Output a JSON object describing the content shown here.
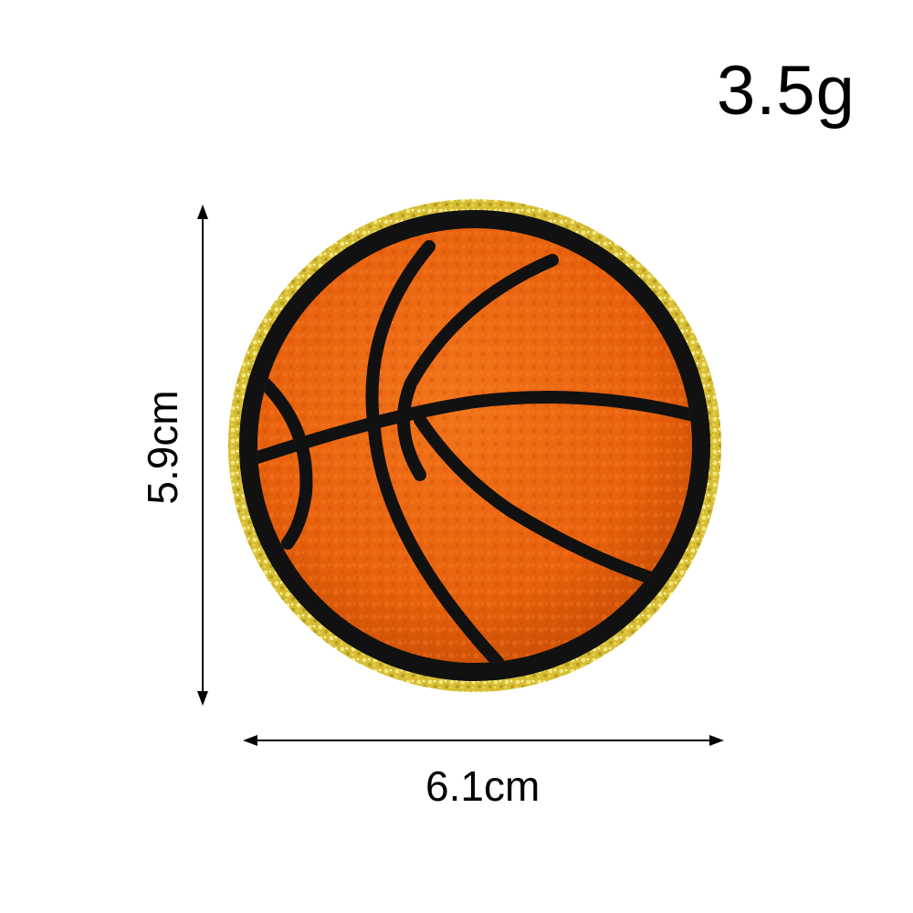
{
  "weight_label": "3.5g",
  "height_label": "5.9cm",
  "width_label": "6.1cm",
  "product": {
    "subject": "basketball",
    "colors": {
      "ball_fill": "#e8600c",
      "ball_fill_dark": "#c94d05",
      "seam": "#111111",
      "glitter_rim": "#d8c23a",
      "glitter_highlight": "#f4e77a"
    }
  },
  "icons": {
    "vertical_arrow": "double-headed-vertical-arrow",
    "horizontal_arrow": "double-headed-horizontal-arrow"
  }
}
